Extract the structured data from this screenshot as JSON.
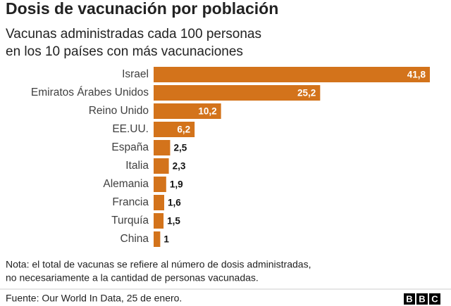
{
  "chart_data": {
    "type": "bar",
    "orientation": "horizontal",
    "title": "Dosis de vacunación por población",
    "subtitle": [
      "Vacunas administradas cada 100 personas",
      "en los 10 países con más vacunaciones"
    ],
    "categories": [
      "Israel",
      "Emiratos Árabes Unidos",
      "Reino Unido",
      "EE.UU.",
      "España",
      "Italia",
      "Alemania",
      "Francia",
      "Turquía",
      "China"
    ],
    "values": [
      41.8,
      25.2,
      10.2,
      6.2,
      2.5,
      2.3,
      1.9,
      1.6,
      1.5,
      1
    ],
    "value_labels": [
      "41,8",
      "25,2",
      "10,2",
      "6,2",
      "2,5",
      "2,3",
      "1,9",
      "1,6",
      "1,5",
      "1"
    ],
    "color": "#d3731b",
    "note": [
      "Nota: el total de vacunas se refiere al número de dosis administradas,",
      "no necesariamente a la cantidad de personas vacunadas."
    ],
    "source": "Fuente: Our World In Data, 25 de enero.",
    "logo": [
      "B",
      "B",
      "C"
    ]
  }
}
